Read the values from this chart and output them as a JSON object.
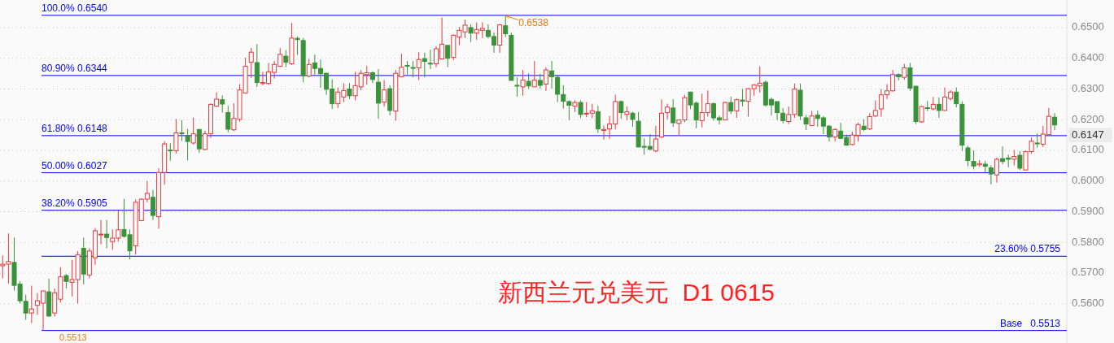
{
  "chart_data": {
    "type": "candlestick",
    "title": "新西兰元兑美元  D1 0615",
    "ylim": [
      0.5475,
      0.659
    ],
    "yticks": [
      {
        "value": 0.56,
        "label": "0.5600"
      },
      {
        "value": 0.57,
        "label": "0.5700"
      },
      {
        "value": 0.58,
        "label": "0.5800"
      },
      {
        "value": 0.59,
        "label": "0.5900"
      },
      {
        "value": 0.6,
        "label": "0.6000"
      },
      {
        "value": 0.61,
        "label": "0.6100"
      },
      {
        "value": 0.62,
        "label": "0.6200"
      },
      {
        "value": 0.63,
        "label": "0.6300"
      },
      {
        "value": 0.64,
        "label": "0.6400"
      },
      {
        "value": 0.65,
        "label": "0.6500"
      }
    ],
    "grid": "y",
    "ref_lines": [
      {
        "axis": "y",
        "value": 0.654,
        "label": "100.0% 0.6540",
        "color": "#0000ff"
      },
      {
        "axis": "y",
        "value": 0.6344,
        "label": "80.90% 0.6344",
        "color": "#0000ff"
      },
      {
        "axis": "y",
        "value": 0.6148,
        "label": "61.80% 0.6148",
        "color": "#0000ff"
      },
      {
        "axis": "y",
        "value": 0.6027,
        "label": "50.00% 0.6027",
        "color": "#0000ff"
      },
      {
        "axis": "y",
        "value": 0.5905,
        "label": "38.20% 0.5905",
        "color": "#0000ff"
      },
      {
        "axis": "y",
        "value": 0.5755,
        "label": "23.60% 0.5755",
        "color": "#0000ff"
      },
      {
        "axis": "y",
        "value": 0.5513,
        "label": "Base   0.5513",
        "color": "#0000ff"
      }
    ],
    "annotations": [
      {
        "text": "0.6538",
        "y": 0.6538
      },
      {
        "text": "0.5513",
        "y": 0.5513
      },
      "0.6147"
    ],
    "ohlc": [
      [
        0.5724,
        0.5758,
        0.5683,
        0.5729
      ],
      [
        0.5729,
        0.5829,
        0.5666,
        0.5738
      ],
      [
        0.5735,
        0.5816,
        0.5643,
        0.566
      ],
      [
        0.5664,
        0.5674,
        0.5601,
        0.561
      ],
      [
        0.5608,
        0.563,
        0.5548,
        0.557
      ],
      [
        0.557,
        0.5659,
        0.5537,
        0.5583
      ],
      [
        0.5595,
        0.5635,
        0.5564,
        0.561
      ],
      [
        0.5602,
        0.5643,
        0.5513,
        0.5642
      ],
      [
        0.5639,
        0.5682,
        0.5558,
        0.556
      ],
      [
        0.557,
        0.565,
        0.5558,
        0.5636
      ],
      [
        0.5615,
        0.5719,
        0.5604,
        0.5688
      ],
      [
        0.5692,
        0.5697,
        0.565,
        0.5673
      ],
      [
        0.567,
        0.5743,
        0.5624,
        0.5679
      ],
      [
        0.5679,
        0.5772,
        0.5601,
        0.576
      ],
      [
        0.5781,
        0.5816,
        0.5663,
        0.5697
      ],
      [
        0.5694,
        0.5781,
        0.5683,
        0.5772
      ],
      [
        0.575,
        0.5847,
        0.5727,
        0.5838
      ],
      [
        0.5825,
        0.5873,
        0.5794,
        0.5827
      ],
      [
        0.5827,
        0.5873,
        0.5781,
        0.5816
      ],
      [
        0.5803,
        0.5842,
        0.5776,
        0.5814
      ],
      [
        0.5814,
        0.5904,
        0.5803,
        0.5841
      ],
      [
        0.5842,
        0.5942,
        0.5816,
        0.582
      ],
      [
        0.5825,
        0.5842,
        0.5745,
        0.5773
      ],
      [
        0.5789,
        0.594,
        0.5761,
        0.5931
      ],
      [
        0.5871,
        0.5944,
        0.5869,
        0.5941
      ],
      [
        0.5941,
        0.6,
        0.5931,
        0.596
      ],
      [
        0.5947,
        0.5971,
        0.5873,
        0.5888
      ],
      [
        0.5884,
        0.6042,
        0.5845,
        0.6028
      ],
      [
        0.6028,
        0.613,
        0.5988,
        0.6121
      ],
      [
        0.6101,
        0.6123,
        0.6066,
        0.6099
      ],
      [
        0.6099,
        0.6202,
        0.609,
        0.6157
      ],
      [
        0.6157,
        0.6198,
        0.6131,
        0.6154
      ],
      [
        0.6148,
        0.617,
        0.6068,
        0.6129
      ],
      [
        0.6124,
        0.6207,
        0.6119,
        0.6154
      ],
      [
        0.6168,
        0.617,
        0.6092,
        0.6105
      ],
      [
        0.6103,
        0.6164,
        0.6101,
        0.6154
      ],
      [
        0.6154,
        0.6253,
        0.6141,
        0.625
      ],
      [
        0.6244,
        0.6289,
        0.6241,
        0.6267
      ],
      [
        0.6265,
        0.6279,
        0.6223,
        0.6251
      ],
      [
        0.6223,
        0.6245,
        0.6159,
        0.6169
      ],
      [
        0.6167,
        0.6253,
        0.6163,
        0.6204
      ],
      [
        0.6201,
        0.6316,
        0.6194,
        0.6297
      ],
      [
        0.6287,
        0.6402,
        0.6285,
        0.6374
      ],
      [
        0.6387,
        0.6434,
        0.6336,
        0.642
      ],
      [
        0.6386,
        0.6446,
        0.6307,
        0.6321
      ],
      [
        0.6318,
        0.6356,
        0.6312,
        0.6321
      ],
      [
        0.6318,
        0.6385,
        0.6313,
        0.6356
      ],
      [
        0.6354,
        0.6391,
        0.6334,
        0.638
      ],
      [
        0.6374,
        0.6434,
        0.6372,
        0.6413
      ],
      [
        0.6407,
        0.6427,
        0.6371,
        0.6387
      ],
      [
        0.6382,
        0.6515,
        0.6378,
        0.6466
      ],
      [
        0.6465,
        0.6471,
        0.6411,
        0.6461
      ],
      [
        0.6458,
        0.6466,
        0.6322,
        0.6343
      ],
      [
        0.6342,
        0.6398,
        0.6338,
        0.638
      ],
      [
        0.6385,
        0.6412,
        0.6347,
        0.6367
      ],
      [
        0.6367,
        0.6396,
        0.6304,
        0.635
      ],
      [
        0.6351,
        0.6354,
        0.6281,
        0.6299
      ],
      [
        0.63,
        0.6332,
        0.6235,
        0.6252
      ],
      [
        0.6252,
        0.6305,
        0.6238,
        0.629
      ],
      [
        0.6274,
        0.6319,
        0.6257,
        0.6295
      ],
      [
        0.63,
        0.6319,
        0.6267,
        0.6278
      ],
      [
        0.6278,
        0.6356,
        0.6263,
        0.6311
      ],
      [
        0.6307,
        0.6362,
        0.6296,
        0.6351
      ],
      [
        0.6347,
        0.6375,
        0.6314,
        0.6353
      ],
      [
        0.6353,
        0.6358,
        0.6319,
        0.6331
      ],
      [
        0.6322,
        0.6365,
        0.6203,
        0.6254
      ],
      [
        0.6257,
        0.6329,
        0.6243,
        0.6297
      ],
      [
        0.6301,
        0.6312,
        0.6214,
        0.623
      ],
      [
        0.6228,
        0.6362,
        0.6197,
        0.6351
      ],
      [
        0.634,
        0.6415,
        0.6338,
        0.6371
      ],
      [
        0.6377,
        0.6391,
        0.6347,
        0.6374
      ],
      [
        0.637,
        0.6391,
        0.6338,
        0.6368
      ],
      [
        0.6369,
        0.642,
        0.6329,
        0.6396
      ],
      [
        0.6399,
        0.6418,
        0.6338,
        0.639
      ],
      [
        0.6384,
        0.6428,
        0.6365,
        0.6382
      ],
      [
        0.6382,
        0.644,
        0.6371,
        0.6431
      ],
      [
        0.6398,
        0.6533,
        0.6397,
        0.6446
      ],
      [
        0.6442,
        0.6444,
        0.6371,
        0.64
      ],
      [
        0.6403,
        0.6478,
        0.6394,
        0.6475
      ],
      [
        0.6469,
        0.6502,
        0.6443,
        0.6491
      ],
      [
        0.6486,
        0.6526,
        0.6466,
        0.6508
      ],
      [
        0.65,
        0.6511,
        0.6453,
        0.6482
      ],
      [
        0.6482,
        0.6517,
        0.646,
        0.6494
      ],
      [
        0.6491,
        0.6517,
        0.6466,
        0.6497
      ],
      [
        0.6491,
        0.6511,
        0.6465,
        0.6471
      ],
      [
        0.6471,
        0.6484,
        0.6418,
        0.6443
      ],
      [
        0.6443,
        0.6512,
        0.6418,
        0.6509
      ],
      [
        0.6506,
        0.6538,
        0.6469,
        0.648
      ],
      [
        0.6475,
        0.6484,
        0.6328,
        0.6328
      ],
      [
        0.6312,
        0.6338,
        0.6275,
        0.631
      ],
      [
        0.6307,
        0.6362,
        0.6278,
        0.6329
      ],
      [
        0.6325,
        0.6351,
        0.6301,
        0.631
      ],
      [
        0.6307,
        0.6391,
        0.6307,
        0.6329
      ],
      [
        0.6328,
        0.6349,
        0.6301,
        0.6312
      ],
      [
        0.6316,
        0.6371,
        0.6294,
        0.6362
      ],
      [
        0.6359,
        0.6391,
        0.6301,
        0.634
      ],
      [
        0.6338,
        0.6343,
        0.6257,
        0.6283
      ],
      [
        0.6282,
        0.6312,
        0.6236,
        0.626
      ],
      [
        0.6259,
        0.6263,
        0.6199,
        0.6247
      ],
      [
        0.6244,
        0.6263,
        0.6225,
        0.6256
      ],
      [
        0.6256,
        0.6263,
        0.6206,
        0.6217
      ],
      [
        0.6219,
        0.6257,
        0.6208,
        0.6221
      ],
      [
        0.6221,
        0.6252,
        0.6205,
        0.6229
      ],
      [
        0.6226,
        0.6245,
        0.6157,
        0.617
      ],
      [
        0.6165,
        0.6181,
        0.6135,
        0.6168
      ],
      [
        0.617,
        0.6212,
        0.6138,
        0.6186
      ],
      [
        0.6186,
        0.6281,
        0.6168,
        0.6259
      ],
      [
        0.6259,
        0.6263,
        0.6203,
        0.6223
      ],
      [
        0.6217,
        0.6243,
        0.6198,
        0.6226
      ],
      [
        0.6221,
        0.6226,
        0.6177,
        0.6201
      ],
      [
        0.6195,
        0.6225,
        0.611,
        0.6111
      ],
      [
        0.6113,
        0.6139,
        0.6086,
        0.6111
      ],
      [
        0.6113,
        0.6153,
        0.6099,
        0.6104
      ],
      [
        0.6098,
        0.618,
        0.6094,
        0.6137
      ],
      [
        0.6144,
        0.6266,
        0.614,
        0.6221
      ],
      [
        0.6223,
        0.6252,
        0.6201,
        0.6241
      ],
      [
        0.6238,
        0.6267,
        0.6177,
        0.619
      ],
      [
        0.6188,
        0.6201,
        0.6148,
        0.6199
      ],
      [
        0.6199,
        0.6281,
        0.6192,
        0.6272
      ],
      [
        0.629,
        0.6291,
        0.6234,
        0.6248
      ],
      [
        0.6254,
        0.6259,
        0.6172,
        0.6199
      ],
      [
        0.6197,
        0.6285,
        0.6175,
        0.6223
      ],
      [
        0.6223,
        0.6295,
        0.621,
        0.6252
      ],
      [
        0.6252,
        0.6256,
        0.6197,
        0.6206
      ],
      [
        0.6206,
        0.6213,
        0.6185,
        0.6199
      ],
      [
        0.6199,
        0.6259,
        0.6198,
        0.6256
      ],
      [
        0.6256,
        0.6275,
        0.6219,
        0.6228
      ],
      [
        0.6229,
        0.6269,
        0.6206,
        0.6265
      ],
      [
        0.6264,
        0.63,
        0.6243,
        0.626
      ],
      [
        0.626,
        0.6303,
        0.621,
        0.6301
      ],
      [
        0.6301,
        0.6316,
        0.6278,
        0.6313
      ],
      [
        0.631,
        0.6374,
        0.6288,
        0.6319
      ],
      [
        0.6322,
        0.6328,
        0.6243,
        0.6248
      ],
      [
        0.6266,
        0.6272,
        0.6214,
        0.6248
      ],
      [
        0.6259,
        0.6259,
        0.6199,
        0.6223
      ],
      [
        0.6221,
        0.6238,
        0.6188,
        0.6197
      ],
      [
        0.6194,
        0.6243,
        0.6186,
        0.6217
      ],
      [
        0.6217,
        0.6318,
        0.6206,
        0.63
      ],
      [
        0.6296,
        0.6318,
        0.6199,
        0.6212
      ],
      [
        0.6206,
        0.6215,
        0.6166,
        0.6186
      ],
      [
        0.6181,
        0.6229,
        0.6179,
        0.6212
      ],
      [
        0.6215,
        0.623,
        0.6177,
        0.6204
      ],
      [
        0.6206,
        0.6212,
        0.6153,
        0.6179
      ],
      [
        0.6179,
        0.6183,
        0.6129,
        0.6144
      ],
      [
        0.6144,
        0.6172,
        0.6129,
        0.6168
      ],
      [
        0.6163,
        0.619,
        0.6137,
        0.6139
      ],
      [
        0.6142,
        0.6152,
        0.6115,
        0.6117
      ],
      [
        0.6119,
        0.6161,
        0.6117,
        0.615
      ],
      [
        0.6149,
        0.619,
        0.6129,
        0.6184
      ],
      [
        0.6179,
        0.6201,
        0.6163,
        0.6168
      ],
      [
        0.617,
        0.6221,
        0.6166,
        0.621
      ],
      [
        0.6212,
        0.6263,
        0.6208,
        0.623
      ],
      [
        0.6235,
        0.63,
        0.621,
        0.6281
      ],
      [
        0.6281,
        0.6316,
        0.6267,
        0.6294
      ],
      [
        0.6294,
        0.6362,
        0.6292,
        0.6347
      ],
      [
        0.6347,
        0.6351,
        0.6328,
        0.634
      ],
      [
        0.6338,
        0.6382,
        0.633,
        0.6369
      ],
      [
        0.6369,
        0.6385,
        0.6294,
        0.6303
      ],
      [
        0.6309,
        0.6309,
        0.6186,
        0.6194
      ],
      [
        0.6193,
        0.6245,
        0.619,
        0.6243
      ],
      [
        0.6239,
        0.6261,
        0.6228,
        0.6237
      ],
      [
        0.6235,
        0.6274,
        0.623,
        0.625
      ],
      [
        0.625,
        0.6272,
        0.6206,
        0.623
      ],
      [
        0.623,
        0.6305,
        0.6228,
        0.6274
      ],
      [
        0.6269,
        0.6296,
        0.6263,
        0.629
      ],
      [
        0.629,
        0.6305,
        0.624,
        0.6252
      ],
      [
        0.625,
        0.6259,
        0.6098,
        0.6117
      ],
      [
        0.6108,
        0.6115,
        0.6048,
        0.6067
      ],
      [
        0.6064,
        0.61,
        0.6038,
        0.6049
      ],
      [
        0.6053,
        0.6068,
        0.6046,
        0.6057
      ],
      [
        0.6055,
        0.6066,
        0.6029,
        0.6048
      ],
      [
        0.6043,
        0.6051,
        0.5989,
        0.6023
      ],
      [
        0.602,
        0.6077,
        0.5995,
        0.6071
      ],
      [
        0.6073,
        0.6113,
        0.6055,
        0.6064
      ],
      [
        0.6075,
        0.6086,
        0.6045,
        0.6071
      ],
      [
        0.6071,
        0.6101,
        0.6051,
        0.608
      ],
      [
        0.6084,
        0.6098,
        0.6036,
        0.6042
      ],
      [
        0.6036,
        0.6099,
        0.6035,
        0.6096
      ],
      [
        0.6096,
        0.6142,
        0.6089,
        0.613
      ],
      [
        0.6124,
        0.6155,
        0.6108,
        0.6122
      ],
      [
        0.612,
        0.618,
        0.6111,
        0.6153
      ],
      [
        0.6151,
        0.6238,
        0.6149,
        0.6211
      ],
      [
        0.6208,
        0.6221,
        0.6166,
        0.6183
      ]
    ]
  }
}
